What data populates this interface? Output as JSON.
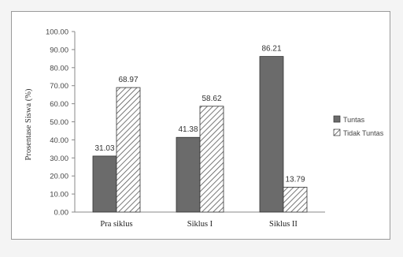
{
  "chart_data": {
    "type": "bar",
    "categories": [
      "Pra siklus",
      "Siklus I",
      "Siklus II"
    ],
    "series": [
      {
        "name": "Tuntas",
        "values": [
          31.03,
          41.38,
          86.21
        ],
        "color": "#6b6b6b",
        "pattern": "solid"
      },
      {
        "name": "Tidak Tuntas",
        "values": [
          68.97,
          58.62,
          13.79
        ],
        "color": "#555555",
        "pattern": "diagonal-hatch"
      }
    ],
    "ylabel": "Prosentase Siswa (%)",
    "xlabel": "",
    "ylim": [
      0,
      100
    ],
    "yticks": [
      "0.00",
      "10.00",
      "20.00",
      "30.00",
      "40.00",
      "50.00",
      "60.00",
      "70.00",
      "80.00",
      "90.00",
      "100.00"
    ],
    "grid": false,
    "legend_position": "right",
    "data_labels": true
  }
}
